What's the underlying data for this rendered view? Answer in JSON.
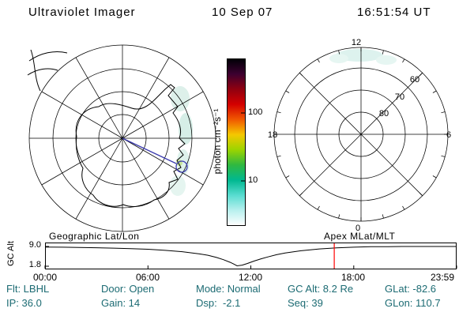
{
  "header": {
    "title": "Ultraviolet Imager",
    "date": "10 Sep 07",
    "time": "16:51:54 UT"
  },
  "colors": {
    "background": "#ffffff",
    "status-text": "#1c6b73",
    "track-line": "#3a3aae",
    "marker-red": "#ff0000"
  },
  "status": {
    "row1": [
      "Flt: LBHL",
      "Door: Open",
      "Mode: Normal",
      "GC Alt: 8.2 Re",
      "GLat: -82.6"
    ],
    "row2": [
      "IP: 36.0",
      "Gain: 14",
      "Dsp:  -2.1",
      "Seq: 39",
      "GLon: 110.7"
    ]
  },
  "chart_data": [
    {
      "type": "polar",
      "name": "geographic-projection",
      "title": "Geographic Lat/Lon",
      "features": [
        "Antarctica coastline",
        "spacecraft footprint track line",
        "footprint circle marker",
        "faint UV emission patches along right limb"
      ]
    },
    {
      "type": "colorbar",
      "name": "intensity-scale",
      "label": "photon cm⁻²s⁻¹",
      "scale": "log",
      "tick_labels": [
        "100",
        "10"
      ],
      "gradient": [
        "#000006",
        "#3c0030",
        "#900010",
        "#d40000",
        "#f05800",
        "#f5c800",
        "#9cd400",
        "#30b840",
        "#00b890",
        "#58dcd0",
        "#b8f0ee",
        "#ffffff"
      ]
    },
    {
      "type": "polar",
      "name": "apex-mlat-mlt",
      "title": "Apex MLat/MLT",
      "ring_labels": [
        "60",
        "70",
        "80"
      ],
      "angle_labels": [
        "12",
        "18",
        "6",
        "0"
      ],
      "features": [
        "faint UV emission near noon sector"
      ]
    },
    {
      "type": "line",
      "name": "gc-alt-profile",
      "ylabel": "GC Alt",
      "ytick_labels": [
        "9.0",
        "1.8"
      ],
      "ylim": [
        1.8,
        9.0
      ],
      "xticks": [
        "00:00",
        "06:00",
        "12:00",
        "18:00",
        "23:59"
      ],
      "x_hours": [
        0,
        1,
        2,
        3,
        4,
        5,
        6,
        7,
        8,
        9,
        9.5,
        10,
        10.4,
        10.8,
        11,
        11.2,
        11.5,
        11.8,
        12.2,
        12.6,
        13,
        13.5,
        14,
        15,
        16,
        17,
        18,
        19,
        20,
        21,
        22,
        23,
        24
      ],
      "values": [
        8.8,
        8.75,
        8.65,
        8.55,
        8.4,
        8.2,
        8.0,
        7.6,
        7.1,
        6.3,
        5.8,
        5.0,
        4.2,
        3.2,
        2.6,
        1.95,
        2.2,
        2.8,
        3.7,
        4.5,
        5.2,
        6.0,
        6.6,
        7.5,
        8.1,
        8.5,
        8.75,
        8.9,
        8.95,
        9.0,
        9.0,
        9.0,
        9.0
      ],
      "marker": {
        "type": "vline",
        "x_hours": 16.865,
        "color": "#ff0000"
      }
    }
  ]
}
